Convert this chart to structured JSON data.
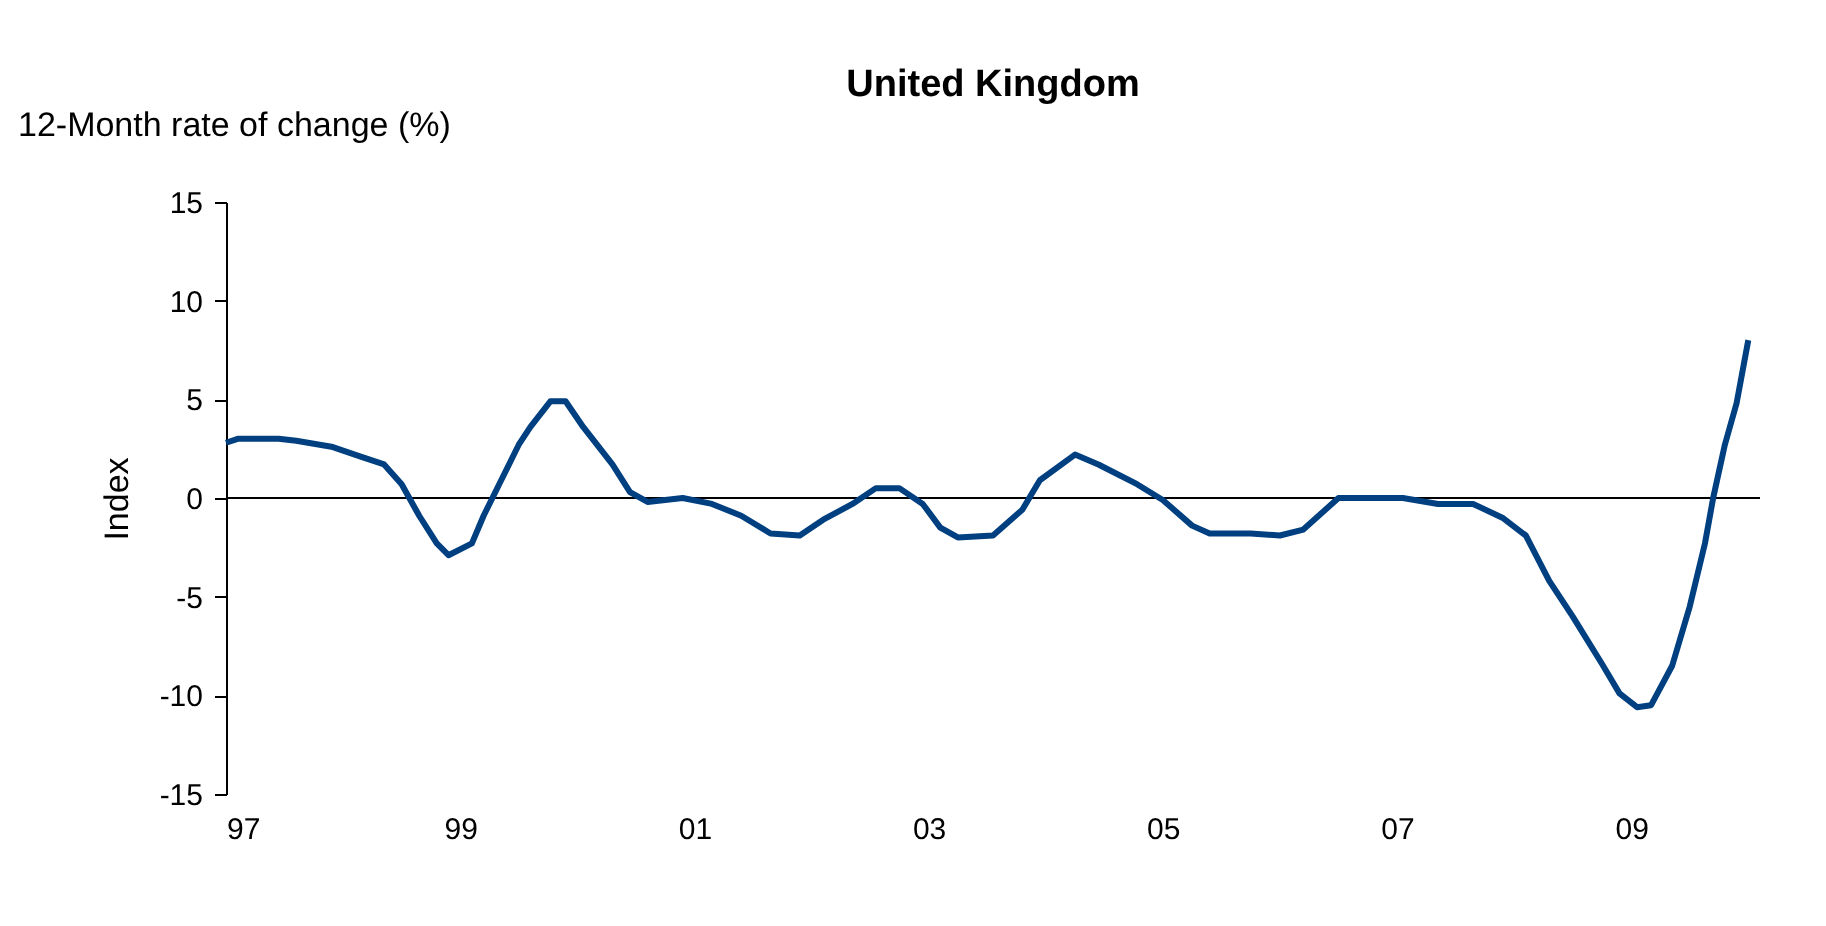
{
  "chart_data": {
    "type": "line",
    "title": "United Kingdom",
    "subtitle": "12-Month rate of change (%)",
    "ylabel": "Index",
    "x": [
      1997.0,
      1997.1,
      1997.45,
      1997.6,
      1997.9,
      1998.15,
      1998.35,
      1998.5,
      1998.65,
      1998.8,
      1998.9,
      1999.1,
      1999.2,
      1999.35,
      1999.5,
      1999.6,
      1999.77,
      1999.9,
      2000.05,
      2000.3,
      2000.45,
      2000.6,
      2000.9,
      2001.15,
      2001.4,
      2001.65,
      2001.9,
      2002.1,
      2002.35,
      2002.55,
      2002.75,
      2002.95,
      2003.1,
      2003.25,
      2003.55,
      2003.8,
      2003.95,
      2004.25,
      2004.45,
      2004.78,
      2005.0,
      2005.25,
      2005.4,
      2005.75,
      2006.0,
      2006.2,
      2006.35,
      2006.5,
      2007.05,
      2007.35,
      2007.65,
      2007.9,
      2008.1,
      2008.3,
      2008.5,
      2008.75,
      2008.9,
      2009.05,
      2009.17,
      2009.35,
      2009.5,
      2009.63,
      2009.7,
      2009.8,
      2009.9,
      2010.0
    ],
    "series": [
      {
        "color": "#003f80",
        "values": [
          2.8,
          3.0,
          3.0,
          2.9,
          2.6,
          2.1,
          1.7,
          0.7,
          -0.9,
          -2.3,
          -2.9,
          -2.3,
          -0.9,
          0.9,
          2.7,
          3.6,
          4.9,
          4.9,
          3.6,
          1.7,
          0.3,
          -0.2,
          0,
          -0.3,
          -0.9,
          -1.8,
          -1.9,
          -1.1,
          -0.3,
          0.5,
          0.5,
          -0.3,
          -1.5,
          -2.0,
          -1.9,
          -0.6,
          0.9,
          2.2,
          1.7,
          0.7,
          -0.1,
          -1.4,
          -1.8,
          -1.8,
          -1.9,
          -1.6,
          -0.8,
          0,
          0,
          -0.3,
          -0.3,
          -1.0,
          -1.9,
          -4.2,
          -6.0,
          -8.4,
          -9.9,
          -10.6,
          -10.5,
          -8.5,
          -5.5,
          -2.3,
          0,
          2.7,
          4.8,
          8.0
        ]
      }
    ],
    "xlim": [
      1997,
      2010.1
    ],
    "xticks": [
      {
        "value": 1997,
        "label": "97"
      },
      {
        "value": 1999,
        "label": "99"
      },
      {
        "value": 2001,
        "label": "01"
      },
      {
        "value": 2003,
        "label": "03"
      },
      {
        "value": 2005,
        "label": "05"
      },
      {
        "value": 2007,
        "label": "07"
      },
      {
        "value": 2009,
        "label": "09"
      }
    ],
    "ylim": [
      -15,
      15
    ],
    "yticks": [
      -15,
      -10,
      -5,
      0,
      5,
      10,
      15
    ],
    "ref_lines": [
      {
        "axis": "y",
        "value": 0,
        "color": "#000000"
      }
    ],
    "grid": false,
    "marker": "none",
    "line_style": "solid"
  }
}
